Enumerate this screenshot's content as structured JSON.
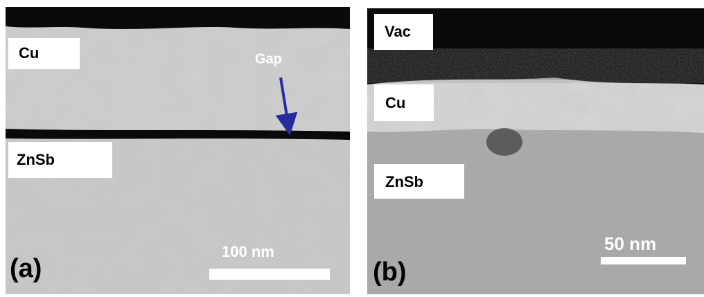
{
  "panels": [
    {
      "label": "(a)",
      "layers": [
        "Cu",
        "ZnSb"
      ],
      "annotation": "Gap",
      "scale_bar": "100 nm"
    },
    {
      "label": "(b)",
      "layers": [
        "Vac",
        "Cu",
        "ZnSb"
      ],
      "scale_bar": "50 nm"
    }
  ]
}
